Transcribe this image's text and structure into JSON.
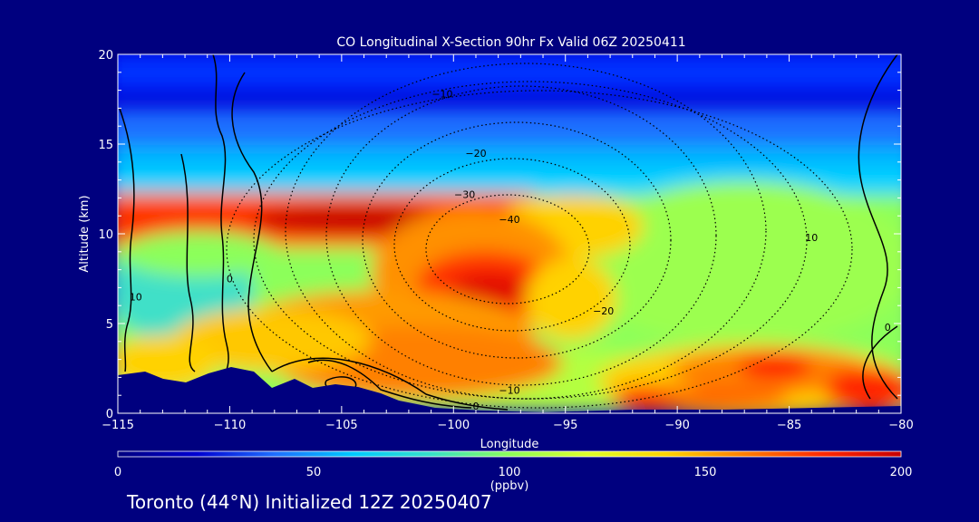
{
  "chart_data": {
    "type": "heatmap",
    "title": "CO Longitudinal X-Section 90hr  Fx Valid 06Z 20250411",
    "xlabel": "Longitude",
    "ylabel": "Altitude (km)",
    "xlim": [
      -115,
      -80
    ],
    "ylim": [
      0,
      20
    ],
    "x_ticks": [
      -115,
      -110,
      -105,
      -100,
      -95,
      -90,
      -85,
      -80
    ],
    "x_tick_labels": [
      "−115",
      "−110",
      "−105",
      "−100",
      "−95",
      "−90",
      "−85",
      "−80"
    ],
    "y_ticks": [
      0,
      5,
      10,
      15,
      20
    ],
    "y_tick_labels": [
      "0",
      "5",
      "10",
      "15",
      "20"
    ],
    "grid": false,
    "colorbar": {
      "min": 0,
      "max": 200,
      "ticks": [
        0,
        50,
        100,
        150,
        200
      ],
      "tick_labels": [
        "0",
        "50",
        "100",
        "150",
        "200"
      ],
      "unit_label": "(ppbv)",
      "colors": [
        "#00007f",
        "#0000d0",
        "#1f6fff",
        "#00c8ff",
        "#37e0c8",
        "#8cff5a",
        "#dcff28",
        "#ffd200",
        "#ff7d00",
        "#ff2800",
        "#c80000"
      ]
    },
    "field_features": [
      {
        "feature": "background",
        "value": 25
      },
      {
        "feature": "upper CO band",
        "lon": [
          -115,
          -95
        ],
        "alt_km": 10.5,
        "peak_value": 200
      },
      {
        "feature": "mid-level plume",
        "lon": -99,
        "alt_km": 7,
        "peak_value": 190
      },
      {
        "feature": "boundary-layer maximum",
        "lon": -85,
        "alt_km": 2.5,
        "peak_value": 200
      }
    ],
    "contour_labels": [
      {
        "text": "−10",
        "lon": -100.5,
        "alt_km": 17.8
      },
      {
        "text": "−20",
        "lon": -99,
        "alt_km": 14.5
      },
      {
        "text": "−30",
        "lon": -99.5,
        "alt_km": 12.2
      },
      {
        "text": "−40",
        "lon": -97.5,
        "alt_km": 10.8
      },
      {
        "text": "−20",
        "lon": -93.3,
        "alt_km": 5.7
      },
      {
        "text": "−10",
        "lon": -97.5,
        "alt_km": 1.3
      },
      {
        "text": "10",
        "lon": -84,
        "alt_km": 9.8
      },
      {
        "text": "10",
        "lon": -114.2,
        "alt_km": 6.5
      },
      {
        "text": "0",
        "lon": -110,
        "alt_km": 7.5
      },
      {
        "text": "0",
        "lon": -80.6,
        "alt_km": 4.8
      },
      {
        "text": "0",
        "lon": -99,
        "alt_km": 0.4
      }
    ]
  },
  "footer_text": "Toronto (44°N) Initialized 12Z 20250407",
  "colors": {
    "background": "#00007f",
    "text": "#ffffff",
    "terrain": "#00007f"
  }
}
